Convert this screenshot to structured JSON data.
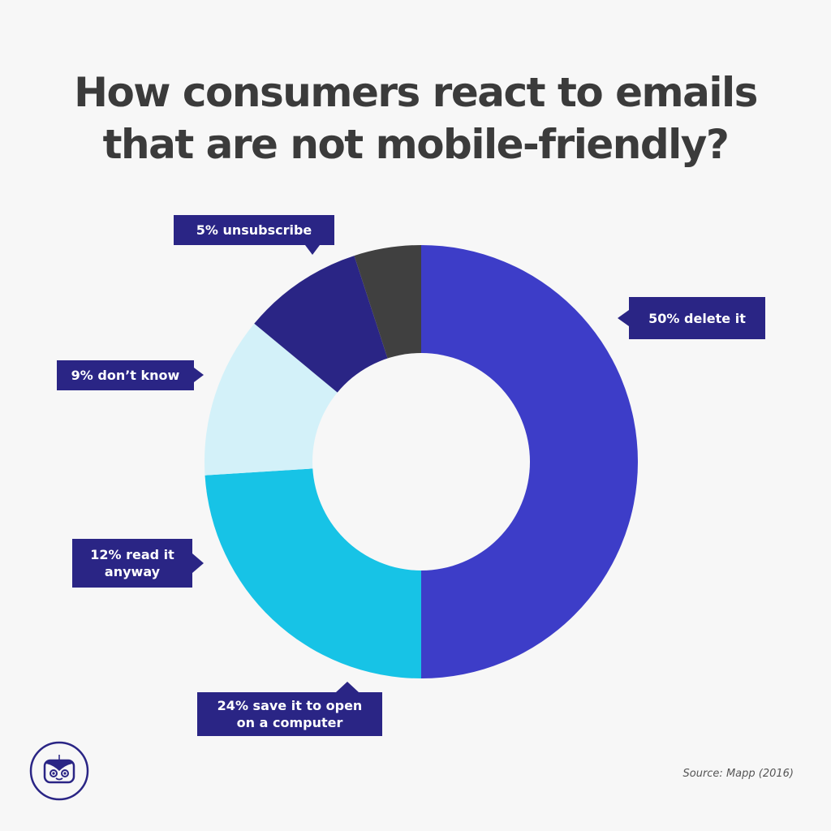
{
  "title": {
    "line1": "How consumers react to emails",
    "line2": "that are not mobile-friendly?"
  },
  "labels": {
    "delete": "50% delete it",
    "save_line1": "24% save it to open",
    "save_line2": "on a computer",
    "read_line1": "12% read it",
    "read_line2": "anyway",
    "dont_know": "9% don’t know",
    "unsubscribe": "5% unsubscribe"
  },
  "source": "Source: Mapp (2016)",
  "logo": "robot-logo-icon",
  "colors": {
    "background": "#f7f7f7",
    "title": "#3b3b3b",
    "label_bg": "#2a2585",
    "delete": "#3d3dc8",
    "save": "#17c3e6",
    "read": "#d3f1f9",
    "dont_know": "#2a2585",
    "unsubscribe": "#404040"
  },
  "chart_data": {
    "type": "pie",
    "subtype": "donut",
    "title": "How consumers react to emails that are not mobile-friendly?",
    "categories": [
      "delete it",
      "save it to open on a computer",
      "read it anyway",
      "don't know",
      "unsubscribe"
    ],
    "values": [
      50,
      24,
      12,
      9,
      5
    ],
    "unit": "%",
    "colors": [
      "#3d3dc8",
      "#17c3e6",
      "#d3f1f9",
      "#2a2585",
      "#404040"
    ],
    "start_angle": "12 o'clock, clockwise",
    "source": "Source: Mapp (2016)",
    "legend": "callout labels"
  }
}
